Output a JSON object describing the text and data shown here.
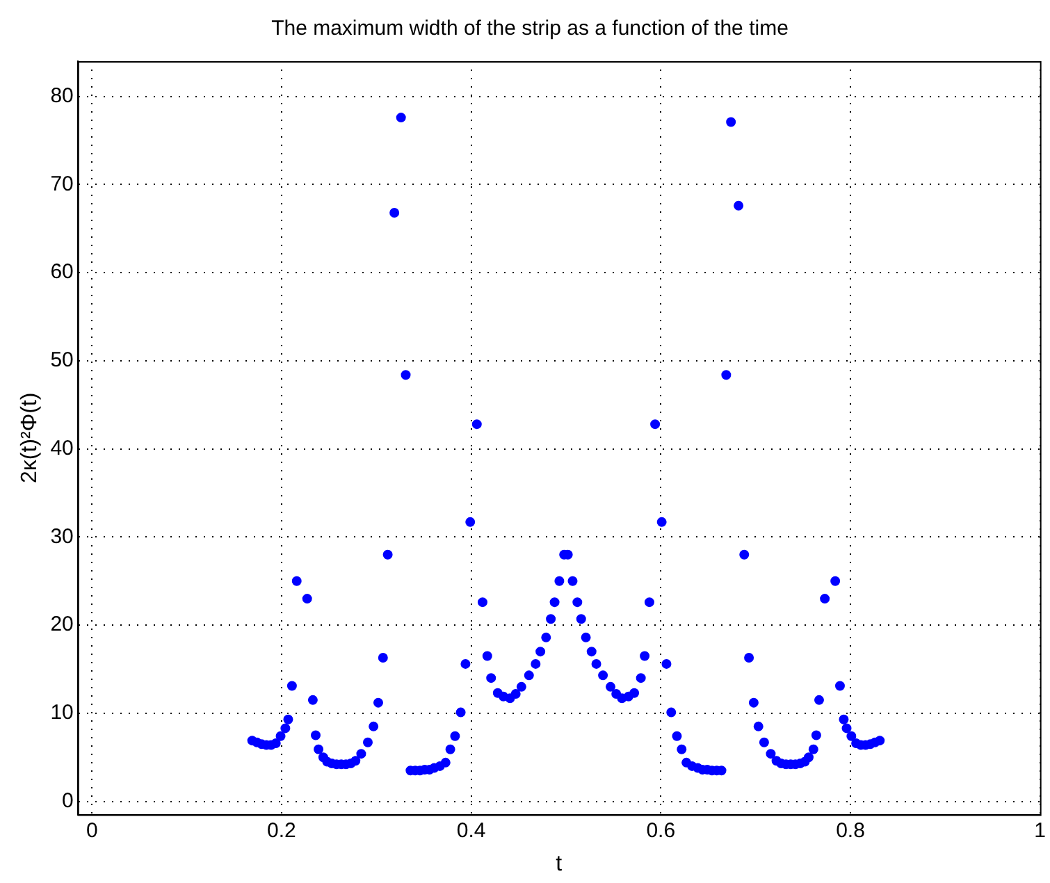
{
  "chart_data": {
    "type": "scatter",
    "title": "The maximum width of the strip as a function of the time",
    "xlabel": "t",
    "ylabel": "2κ(t)²Φ(t)",
    "x": [
      0.169,
      0.174,
      0.179,
      0.184,
      0.189,
      0.194,
      0.199,
      0.204,
      0.207,
      0.211,
      0.216,
      0.227,
      0.233,
      0.236,
      0.239,
      0.244,
      0.248,
      0.253,
      0.258,
      0.263,
      0.268,
      0.273,
      0.278,
      0.284,
      0.291,
      0.297,
      0.302,
      0.307,
      0.312,
      0.319,
      0.326,
      0.331,
      0.336,
      0.341,
      0.346,
      0.351,
      0.356,
      0.361,
      0.367,
      0.373,
      0.378,
      0.383,
      0.389,
      0.394,
      0.399,
      0.406,
      0.412,
      0.417,
      0.421,
      0.428,
      0.434,
      0.441,
      0.447,
      0.453,
      0.461,
      0.468,
      0.473,
      0.479,
      0.484,
      0.488,
      0.493,
      0.498,
      0.502,
      0.507,
      0.512,
      0.516,
      0.521,
      0.527,
      0.532,
      0.539,
      0.547,
      0.553,
      0.559,
      0.566,
      0.572,
      0.579,
      0.583,
      0.588,
      0.594,
      0.601,
      0.606,
      0.611,
      0.617,
      0.622,
      0.627,
      0.633,
      0.639,
      0.644,
      0.649,
      0.654,
      0.659,
      0.664,
      0.669,
      0.674,
      0.682,
      0.688,
      0.693,
      0.698,
      0.703,
      0.709,
      0.716,
      0.722,
      0.727,
      0.732,
      0.737,
      0.742,
      0.747,
      0.752,
      0.756,
      0.761,
      0.764,
      0.767,
      0.773,
      0.784,
      0.789,
      0.793,
      0.796,
      0.801,
      0.806,
      0.811,
      0.816,
      0.821,
      0.826,
      0.831
    ],
    "series": [
      {
        "color": "#0000ff",
        "values": [
          6.9,
          6.7,
          6.5,
          6.4,
          6.4,
          6.6,
          7.4,
          8.3,
          9.3,
          13.1,
          25,
          23,
          11.5,
          7.5,
          5.9,
          5,
          4.5,
          4.3,
          4.2,
          4.2,
          4.2,
          4.3,
          4.6,
          5.4,
          6.7,
          8.5,
          11.2,
          16.3,
          28,
          66.8,
          77.6,
          48.4,
          3.5,
          3.5,
          3.5,
          3.6,
          3.6,
          3.8,
          4,
          4.4,
          5.9,
          7.4,
          10.1,
          15.6,
          31.7,
          42.8,
          22.6,
          16.5,
          14,
          12.3,
          11.9,
          11.7,
          12.2,
          13,
          14.3,
          15.6,
          17,
          18.6,
          20.7,
          22.6,
          25,
          28,
          28,
          25,
          22.6,
          20.7,
          18.6,
          17,
          15.6,
          14.3,
          13,
          12.2,
          11.7,
          11.9,
          12.3,
          14,
          16.5,
          22.6,
          42.8,
          31.7,
          15.6,
          10.1,
          7.4,
          5.9,
          4.4,
          4,
          3.8,
          3.6,
          3.6,
          3.5,
          3.5,
          3.5,
          48.4,
          77.1,
          67.6,
          28,
          16.3,
          11.2,
          8.5,
          6.7,
          5.4,
          4.6,
          4.3,
          4.2,
          4.2,
          4.2,
          4.3,
          4.5,
          5,
          5.9,
          7.5,
          11.5,
          23,
          25,
          13.1,
          9.3,
          8.3,
          7.4,
          6.6,
          6.4,
          6.4,
          6.5,
          6.7,
          6.9
        ]
      }
    ],
    "xlim": [
      -0.015,
      1
    ],
    "xticks": [
      0,
      0.2,
      0.4,
      0.6,
      0.8,
      1
    ],
    "ylim": [
      -1.5,
      84
    ],
    "yticks": [
      0,
      10,
      20,
      30,
      40,
      50,
      60,
      70,
      80
    ],
    "grid": true,
    "marker": "circle",
    "legend": false
  }
}
